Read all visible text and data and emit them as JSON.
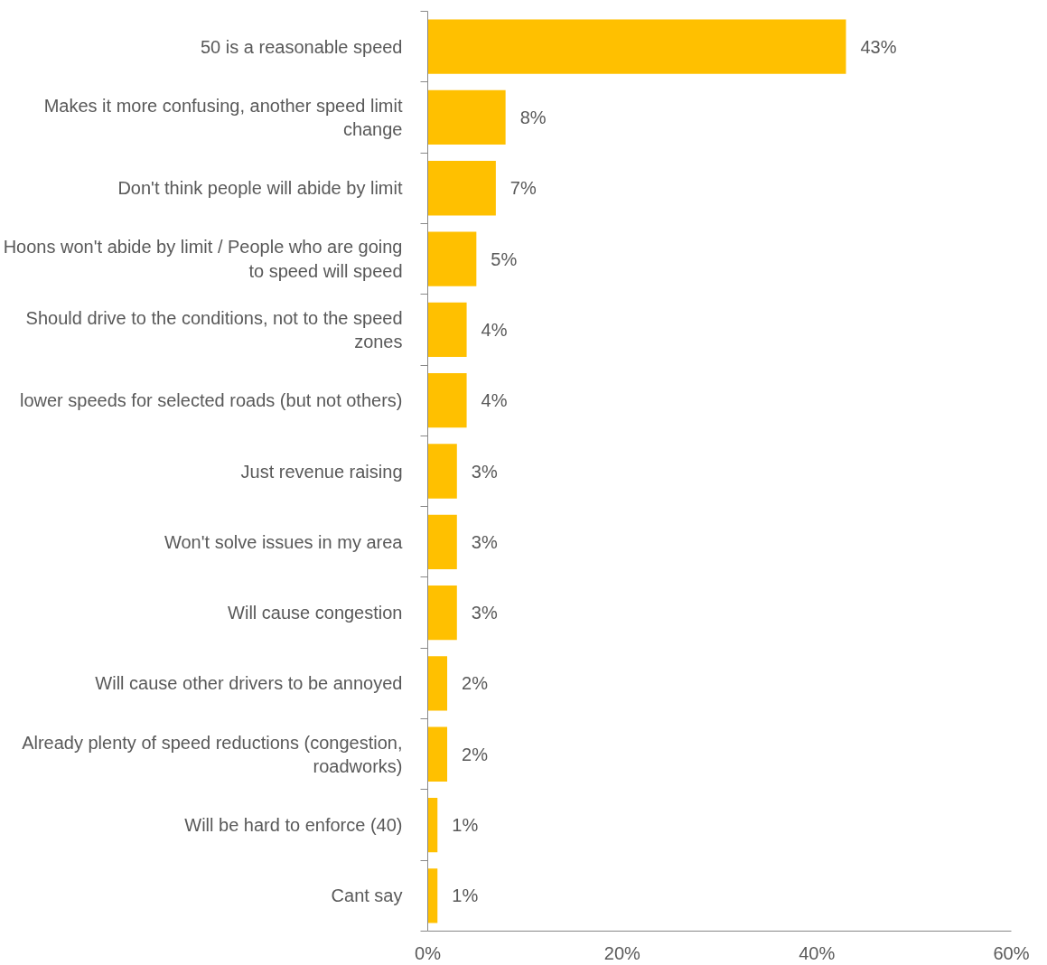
{
  "chart_data": {
    "type": "bar",
    "orientation": "horizontal",
    "color": "#ffc000",
    "categories": [
      "50 is a reasonable speed",
      "Makes it more confusing, another speed limit change",
      "Don't think people will abide by limit",
      "Hoons won't abide by limit / People who are going to speed will speed",
      "Should drive to the conditions, not to the speed zones",
      "lower speeds for selected roads (but not others)",
      "Just revenue raising",
      "Won't solve issues in my area",
      "Will cause congestion",
      "Will cause other drivers to be annoyed",
      "Already plenty of speed reductions (congestion, roadworks)",
      "Will be hard to enforce (40)",
      "Cant say"
    ],
    "values": [
      43,
      8,
      7,
      5,
      4,
      4,
      3,
      3,
      3,
      2,
      2,
      1,
      1
    ],
    "value_labels": [
      "43%",
      "8%",
      "7%",
      "5%",
      "4%",
      "4%",
      "3%",
      "3%",
      "3%",
      "2%",
      "2%",
      "1%",
      "1%"
    ],
    "xlim": [
      0,
      60
    ],
    "xticks": [
      {
        "value": 0,
        "label": "0%"
      },
      {
        "value": 20,
        "label": "20%"
      },
      {
        "value": 40,
        "label": "40%"
      },
      {
        "value": 60,
        "label": "60%"
      }
    ],
    "grid": false
  }
}
